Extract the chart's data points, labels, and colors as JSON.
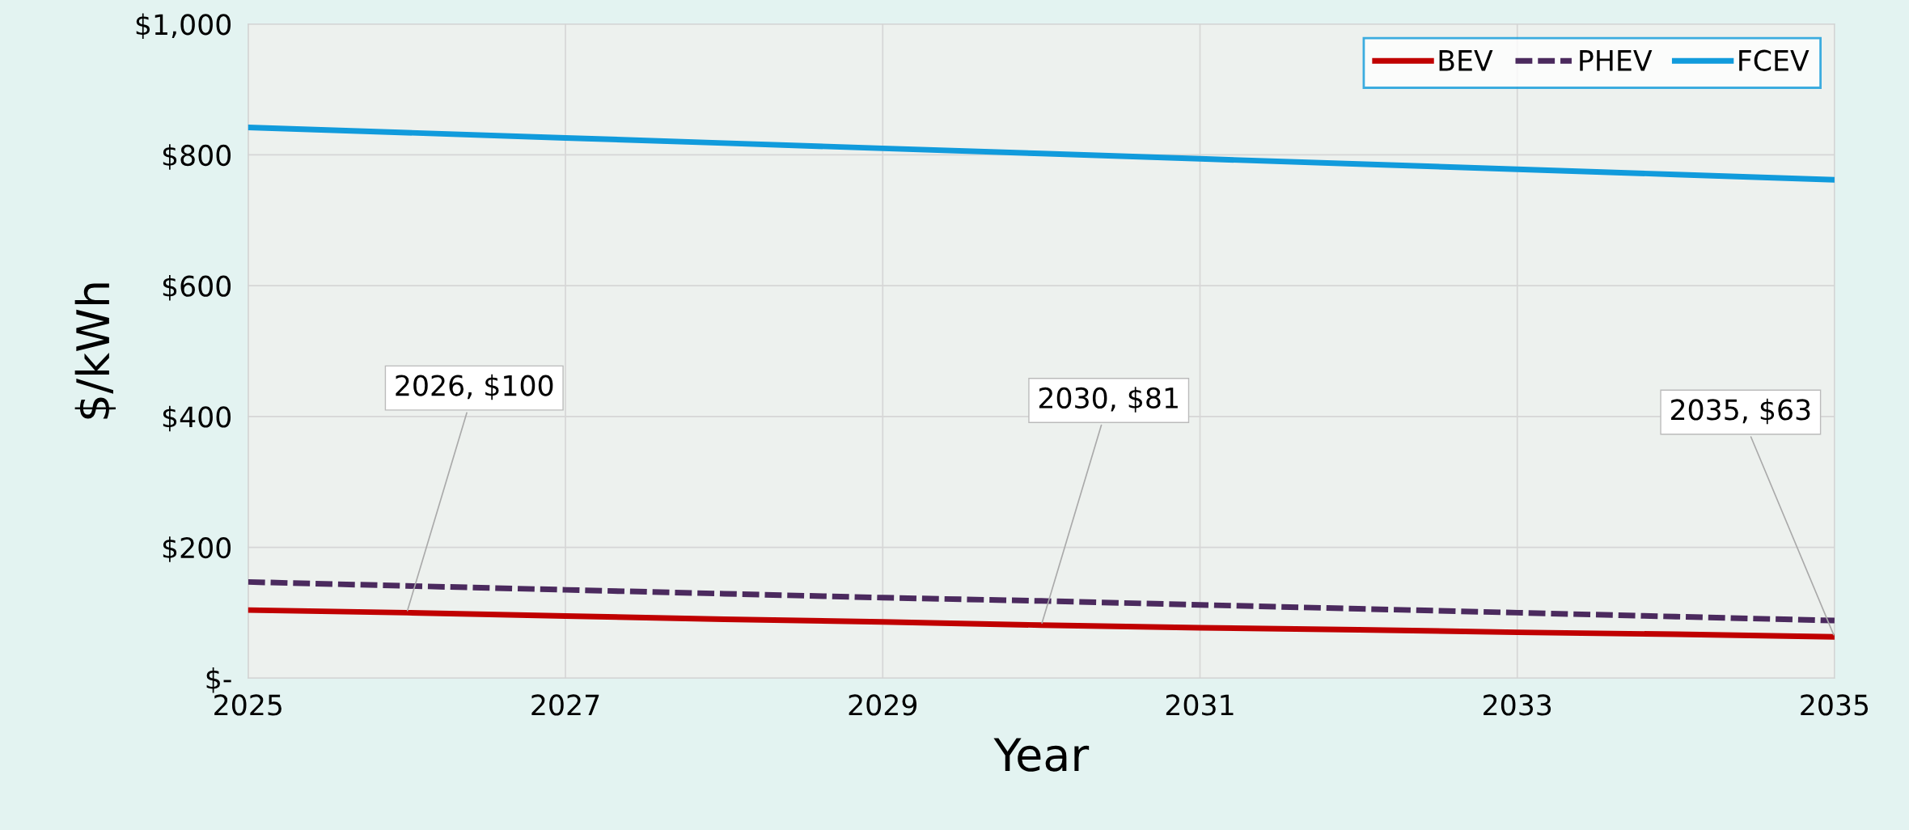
{
  "chart_data": {
    "type": "line",
    "xlabel": "Year",
    "ylabel": "$/kWh",
    "x": [
      2025,
      2026,
      2027,
      2028,
      2029,
      2030,
      2031,
      2032,
      2033,
      2034,
      2035
    ],
    "series": [
      {
        "name": "BEV",
        "color": "#c00000",
        "line_style": "solid",
        "values": [
          104,
          100,
          95,
          90,
          86,
          81,
          77,
          74,
          70,
          67,
          63
        ]
      },
      {
        "name": "PHEV",
        "color": "#4b2a5e",
        "line_style": "dashed",
        "values": [
          147,
          141,
          135,
          129,
          123,
          118,
          112,
          106,
          100,
          94,
          88
        ]
      },
      {
        "name": "FCEV",
        "color": "#119bdc",
        "line_style": "solid",
        "values": [
          842,
          834,
          826,
          818,
          810,
          802,
          794,
          786,
          778,
          770,
          762
        ]
      }
    ],
    "xlim": [
      2025,
      2035
    ],
    "xticks": [
      2025,
      2027,
      2029,
      2031,
      2033,
      2035
    ],
    "ylim": [
      0,
      1000
    ],
    "yticks": [
      {
        "value": 0,
        "label": "$-"
      },
      {
        "value": 200,
        "label": "$200"
      },
      {
        "value": 400,
        "label": "$400"
      },
      {
        "value": 600,
        "label": "$600"
      },
      {
        "value": 800,
        "label": "$800"
      },
      {
        "value": 1000,
        "label": "$1,000"
      }
    ],
    "annotations": [
      {
        "text": "2026, $100",
        "x": 2026,
        "y": 100
      },
      {
        "text": "2030, $81",
        "x": 2030,
        "y": 81
      },
      {
        "text": "2035, $63",
        "x": 2035,
        "y": 63
      }
    ],
    "grid": true,
    "legend": "top right",
    "marker": "none"
  }
}
